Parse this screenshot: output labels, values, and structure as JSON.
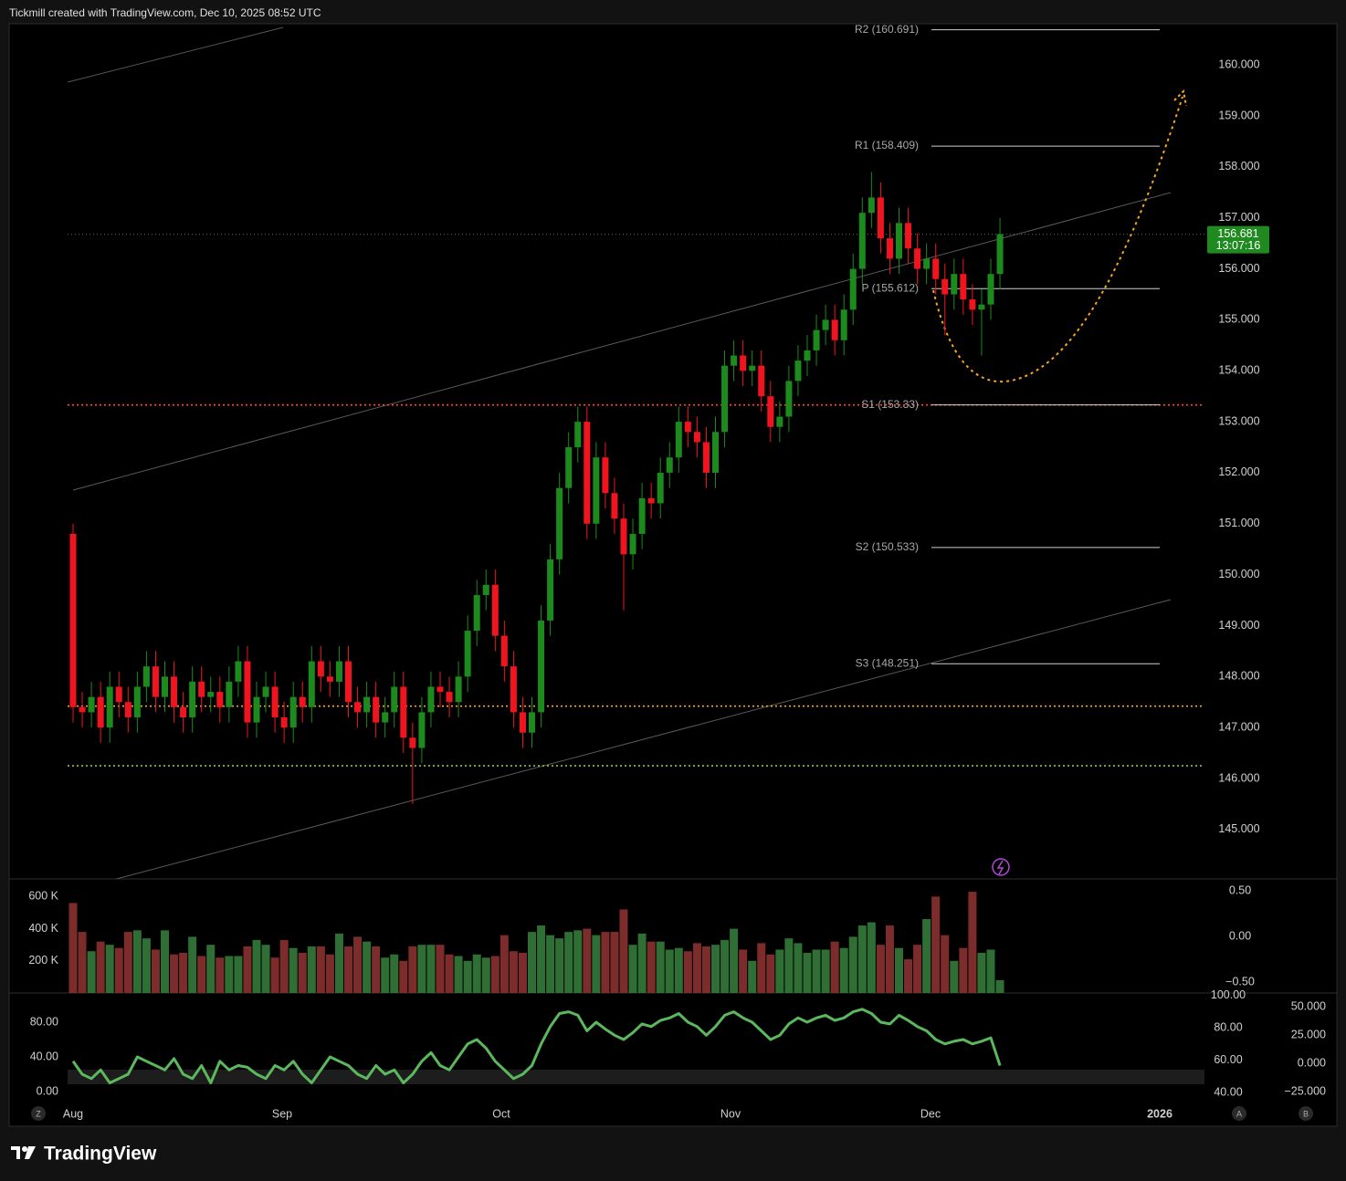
{
  "header": "Tickmill created with TradingView.com, Dec 10, 2025 08:52 UTC",
  "brand": "TradingView",
  "buttons": [
    "Z",
    "A",
    "B"
  ],
  "chart_data": {
    "type": "candlestick",
    "up_color": "#1c8a1c",
    "down_color": "#f0141e",
    "ohlc": [
      [
        150.8,
        151.0,
        147.1,
        147.4
      ],
      [
        147.4,
        147.7,
        147.0,
        147.3
      ],
      [
        147.3,
        147.9,
        147.0,
        147.6
      ],
      [
        147.6,
        147.9,
        146.7,
        147.0
      ],
      [
        147.0,
        148.1,
        146.7,
        147.8
      ],
      [
        147.8,
        148.1,
        147.2,
        147.5
      ],
      [
        147.5,
        147.8,
        146.9,
        147.2
      ],
      [
        147.2,
        148.1,
        146.9,
        147.8
      ],
      [
        147.8,
        148.5,
        147.5,
        148.2
      ],
      [
        148.2,
        148.5,
        147.3,
        147.6
      ],
      [
        147.6,
        148.3,
        147.3,
        148.0
      ],
      [
        148.0,
        148.3,
        147.1,
        147.4
      ],
      [
        147.4,
        147.7,
        146.9,
        147.2
      ],
      [
        147.2,
        148.2,
        146.9,
        147.9
      ],
      [
        147.9,
        148.2,
        147.3,
        147.6
      ],
      [
        147.6,
        148.0,
        147.3,
        147.7
      ],
      [
        147.7,
        148.0,
        147.1,
        147.4
      ],
      [
        147.4,
        148.2,
        147.1,
        147.9
      ],
      [
        147.9,
        148.6,
        147.6,
        148.3
      ],
      [
        148.3,
        148.6,
        146.8,
        147.1
      ],
      [
        147.1,
        147.9,
        146.8,
        147.6
      ],
      [
        147.6,
        148.1,
        147.3,
        147.8
      ],
      [
        147.8,
        148.1,
        146.9,
        147.2
      ],
      [
        147.2,
        147.5,
        146.7,
        147.0
      ],
      [
        147.0,
        147.9,
        146.7,
        147.6
      ],
      [
        147.6,
        147.9,
        147.1,
        147.4
      ],
      [
        147.4,
        148.6,
        147.1,
        148.3
      ],
      [
        148.3,
        148.6,
        147.7,
        148.0
      ],
      [
        148.0,
        148.3,
        147.6,
        147.9
      ],
      [
        147.9,
        148.6,
        147.6,
        148.3
      ],
      [
        148.3,
        148.6,
        147.2,
        147.5
      ],
      [
        147.5,
        147.8,
        147.0,
        147.3
      ],
      [
        147.3,
        147.9,
        147.0,
        147.6
      ],
      [
        147.6,
        147.9,
        146.8,
        147.1
      ],
      [
        147.1,
        147.6,
        146.8,
        147.3
      ],
      [
        147.3,
        148.1,
        147.0,
        147.8
      ],
      [
        147.8,
        148.1,
        146.5,
        146.8
      ],
      [
        146.8,
        147.1,
        145.5,
        146.6
      ],
      [
        146.6,
        147.6,
        146.3,
        147.3
      ],
      [
        147.3,
        148.1,
        147.0,
        147.8
      ],
      [
        147.8,
        148.1,
        147.4,
        147.7
      ],
      [
        147.7,
        148.0,
        147.2,
        147.5
      ],
      [
        147.5,
        148.3,
        147.2,
        148.0
      ],
      [
        148.0,
        149.2,
        147.7,
        148.9
      ],
      [
        148.9,
        149.9,
        148.6,
        149.6
      ],
      [
        149.6,
        150.1,
        149.3,
        149.8
      ],
      [
        149.8,
        150.1,
        148.5,
        148.8
      ],
      [
        148.8,
        149.1,
        147.9,
        148.2
      ],
      [
        148.2,
        148.5,
        147.0,
        147.3
      ],
      [
        147.3,
        147.6,
        146.6,
        146.9
      ],
      [
        146.9,
        147.6,
        146.6,
        147.3
      ],
      [
        147.3,
        149.4,
        147.0,
        149.1
      ],
      [
        149.1,
        150.6,
        148.8,
        150.3
      ],
      [
        150.3,
        152.0,
        150.0,
        151.7
      ],
      [
        151.7,
        152.8,
        151.4,
        152.5
      ],
      [
        152.5,
        153.3,
        152.2,
        153.0
      ],
      [
        153.0,
        153.3,
        150.7,
        151.0
      ],
      [
        151.0,
        152.6,
        150.7,
        152.3
      ],
      [
        152.3,
        152.6,
        151.3,
        151.6
      ],
      [
        151.6,
        151.9,
        150.8,
        151.1
      ],
      [
        151.1,
        151.4,
        149.3,
        150.4
      ],
      [
        150.4,
        151.1,
        150.1,
        150.8
      ],
      [
        150.8,
        151.8,
        150.5,
        151.5
      ],
      [
        151.5,
        151.8,
        151.1,
        151.4
      ],
      [
        151.4,
        152.3,
        151.1,
        152.0
      ],
      [
        152.0,
        152.6,
        151.7,
        152.3
      ],
      [
        152.3,
        153.3,
        152.0,
        153.0
      ],
      [
        153.0,
        153.3,
        152.5,
        152.8
      ],
      [
        152.8,
        153.1,
        152.3,
        152.6
      ],
      [
        152.6,
        152.9,
        151.7,
        152.0
      ],
      [
        152.0,
        153.1,
        151.7,
        152.8
      ],
      [
        152.8,
        154.4,
        152.5,
        154.1
      ],
      [
        154.1,
        154.6,
        153.8,
        154.3
      ],
      [
        154.3,
        154.6,
        153.7,
        154.0
      ],
      [
        154.0,
        154.4,
        153.7,
        154.1
      ],
      [
        154.1,
        154.4,
        153.2,
        153.5
      ],
      [
        153.5,
        153.8,
        152.6,
        152.9
      ],
      [
        152.9,
        153.4,
        152.6,
        153.1
      ],
      [
        153.1,
        154.1,
        152.8,
        153.8
      ],
      [
        153.8,
        154.5,
        153.5,
        154.2
      ],
      [
        154.2,
        154.7,
        153.9,
        154.4
      ],
      [
        154.4,
        155.1,
        154.1,
        154.8
      ],
      [
        154.8,
        155.3,
        154.5,
        155.0
      ],
      [
        155.0,
        155.3,
        154.3,
        154.6
      ],
      [
        154.6,
        155.5,
        154.3,
        155.2
      ],
      [
        155.2,
        156.3,
        154.9,
        156.0
      ],
      [
        156.0,
        157.4,
        155.7,
        157.1
      ],
      [
        157.1,
        157.9,
        156.8,
        157.4
      ],
      [
        157.4,
        157.7,
        156.3,
        156.6
      ],
      [
        156.6,
        156.9,
        155.9,
        156.2
      ],
      [
        156.2,
        157.2,
        155.9,
        156.9
      ],
      [
        156.9,
        157.2,
        156.1,
        156.4
      ],
      [
        156.4,
        156.7,
        155.7,
        156.0
      ],
      [
        156.0,
        156.5,
        155.7,
        156.2
      ],
      [
        156.2,
        156.5,
        155.5,
        155.8
      ],
      [
        155.8,
        156.1,
        154.7,
        155.5
      ],
      [
        155.5,
        156.2,
        155.2,
        155.9
      ],
      [
        155.9,
        156.2,
        155.1,
        155.4
      ],
      [
        155.4,
        155.7,
        154.9,
        155.2
      ],
      [
        155.2,
        155.6,
        154.3,
        155.3
      ],
      [
        155.3,
        156.2,
        155.0,
        155.9
      ],
      [
        155.9,
        157.0,
        155.6,
        156.681
      ]
    ],
    "ylim": [
      144.03,
      160.81
    ],
    "yticks": [
      {
        "value": 145,
        "label": "145.000"
      },
      {
        "value": 146,
        "label": "146.000"
      },
      {
        "value": 147,
        "label": "147.000"
      },
      {
        "value": 148,
        "label": "148.000"
      },
      {
        "value": 149,
        "label": "149.000"
      },
      {
        "value": 150,
        "label": "150.000"
      },
      {
        "value": 151,
        "label": "151.000"
      },
      {
        "value": 152,
        "label": "152.000"
      },
      {
        "value": 153,
        "label": "153.000"
      },
      {
        "value": 154,
        "label": "154.000"
      },
      {
        "value": 155,
        "label": "155.000"
      },
      {
        "value": 156,
        "label": "156.000"
      },
      {
        "value": 157,
        "label": "157.000"
      },
      {
        "value": 158,
        "label": "158.000"
      },
      {
        "value": 159,
        "label": "159.000"
      },
      {
        "value": 160,
        "label": "160.000"
      }
    ],
    "x_labels": [
      "Aug",
      "Sep",
      "Oct",
      "Nov",
      "Dec",
      "2026"
    ],
    "last_price": 156.681,
    "countdown": "13:07:16",
    "last_price_color": "#1f8a1f",
    "pivots": [
      {
        "label": "R2 (160.691)",
        "value": 160.691
      },
      {
        "label": "R1 (158.409)",
        "value": 158.409
      },
      {
        "label": "P (155.612)",
        "value": 155.612
      },
      {
        "label": "S1 (153.33)",
        "value": 153.33
      },
      {
        "label": "S2 (150.533)",
        "value": 150.533
      },
      {
        "label": "S3 (148.251)",
        "value": 148.251
      }
    ],
    "levels": [
      {
        "value": 153.33,
        "color": "#ff4a2a"
      },
      {
        "value": 147.42,
        "color": "#f5a623"
      },
      {
        "value": 146.25,
        "color": "#8bc34a"
      }
    ],
    "volume": {
      "up_color": "#2f6e34",
      "down_color": "#7d2c2c",
      "ylim": [
        0,
        710000
      ],
      "yticks": [
        {
          "value": 600000,
          "label": "600 K"
        },
        {
          "value": 400000,
          "label": "400 K"
        },
        {
          "value": 200000,
          "label": "200 K"
        }
      ],
      "values": [
        560000,
        380000,
        260000,
        320000,
        300000,
        280000,
        380000,
        390000,
        340000,
        270000,
        390000,
        240000,
        250000,
        350000,
        230000,
        300000,
        220000,
        230000,
        230000,
        290000,
        330000,
        300000,
        220000,
        330000,
        280000,
        250000,
        290000,
        290000,
        240000,
        370000,
        290000,
        350000,
        320000,
        290000,
        220000,
        240000,
        200000,
        290000,
        300000,
        300000,
        300000,
        240000,
        230000,
        200000,
        240000,
        220000,
        230000,
        360000,
        260000,
        250000,
        380000,
        420000,
        360000,
        340000,
        380000,
        390000,
        400000,
        360000,
        380000,
        380000,
        520000,
        300000,
        370000,
        320000,
        320000,
        270000,
        280000,
        260000,
        310000,
        290000,
        300000,
        330000,
        400000,
        270000,
        200000,
        310000,
        240000,
        270000,
        340000,
        310000,
        250000,
        270000,
        270000,
        320000,
        280000,
        350000,
        420000,
        440000,
        300000,
        420000,
        280000,
        210000,
        300000,
        460000,
        600000,
        360000,
        200000,
        280000,
        630000,
        250000,
        270000,
        80000
      ]
    },
    "volume_right": {
      "ylim": [
        -0.62,
        0.63
      ],
      "yticks": [
        {
          "value": 0.5,
          "label": "0.50"
        },
        {
          "value": 0,
          "label": "0.00"
        },
        {
          "value": -0.5,
          "label": "−0.50"
        }
      ]
    },
    "oscillator": {
      "color": "#5cb85c",
      "ylim": [
        -12.6,
        113.7
      ],
      "yticks": [
        {
          "value": 80,
          "label": "80.00"
        },
        {
          "value": 40,
          "label": "40.00"
        },
        {
          "value": 0,
          "label": "0.00"
        }
      ],
      "values": [
        35,
        20,
        15,
        25,
        10,
        15,
        20,
        40,
        35,
        30,
        25,
        38,
        20,
        15,
        30,
        10,
        35,
        25,
        30,
        28,
        20,
        15,
        30,
        25,
        35,
        20,
        10,
        25,
        40,
        35,
        30,
        20,
        15,
        30,
        20,
        25,
        10,
        20,
        35,
        45,
        30,
        25,
        40,
        55,
        60,
        50,
        35,
        25,
        15,
        20,
        30,
        55,
        75,
        90,
        92,
        88,
        70,
        80,
        72,
        65,
        60,
        68,
        78,
        75,
        82,
        85,
        90,
        80,
        75,
        65,
        75,
        88,
        92,
        85,
        80,
        70,
        60,
        65,
        78,
        85,
        80,
        85,
        88,
        82,
        85,
        92,
        95,
        90,
        80,
        78,
        88,
        82,
        75,
        70,
        60,
        55,
        58,
        60,
        55,
        58,
        62,
        30
      ],
      "right1": {
        "ylim": [
          33.8,
          101.4
        ],
        "yticks": [
          {
            "value": 100,
            "label": "100.00"
          },
          {
            "value": 80,
            "label": "80.00"
          },
          {
            "value": 60,
            "label": "60.00"
          },
          {
            "value": 40,
            "label": "40.00"
          }
        ]
      },
      "right2": {
        "ylim": [
          -34.7,
          62.1
        ],
        "yticks": [
          {
            "value": 50,
            "label": "50.000"
          },
          {
            "value": 25,
            "label": "25.000"
          },
          {
            "value": 0,
            "label": "0.000"
          },
          {
            "value": -25,
            "label": "−25.000"
          }
        ]
      }
    }
  }
}
